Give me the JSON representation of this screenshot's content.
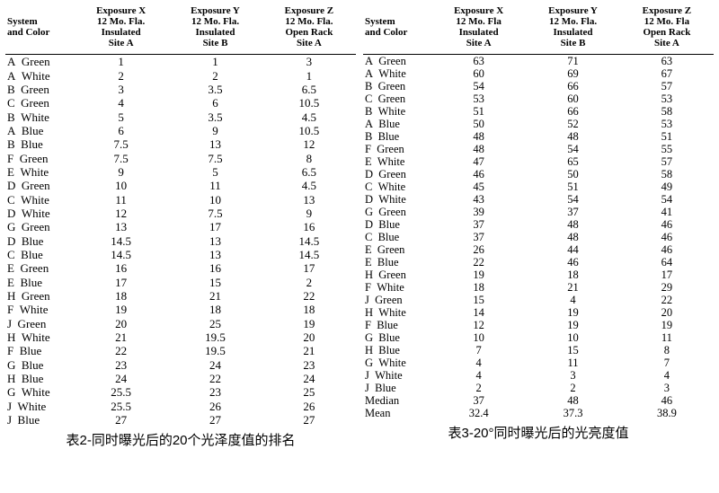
{
  "left": {
    "caption": "表2-同时曝光后的20个光泽度值的排名",
    "headers": {
      "system_and_color": "System\nand Color",
      "expX": "Exposure X\n12 Mo. Fla.\nInsulated\nSite A",
      "expY": "Exposure Y\n12 Mo. Fla.\nInsulated\nSite B",
      "expZ": "Exposure Z\n12 Mo. Fla.\nOpen Rack\nSite A"
    },
    "rows": [
      [
        "A",
        "Green",
        "1",
        "1",
        "3"
      ],
      [
        "A",
        "White",
        "2",
        "2",
        "1"
      ],
      [
        "B",
        "Green",
        "3",
        "3.5",
        "6.5"
      ],
      [
        "C",
        "Green",
        "4",
        "6",
        "10.5"
      ],
      [
        "B",
        "White",
        "5",
        "3.5",
        "4.5"
      ],
      [
        "A",
        "Blue",
        "6",
        "9",
        "10.5"
      ],
      [
        "B",
        "Blue",
        "7.5",
        "13",
        "12"
      ],
      [
        "F",
        "Green",
        "7.5",
        "7.5",
        "8"
      ],
      [
        "E",
        "White",
        "9",
        "5",
        "6.5"
      ],
      [
        "D",
        "Green",
        "10",
        "11",
        "4.5"
      ],
      [
        "C",
        "White",
        "11",
        "10",
        "13"
      ],
      [
        "D",
        "White",
        "12",
        "7.5",
        "9"
      ],
      [
        "G",
        "Green",
        "13",
        "17",
        "16"
      ],
      [
        "D",
        "Blue",
        "14.5",
        "13",
        "14.5"
      ],
      [
        "C",
        "Blue",
        "14.5",
        "13",
        "14.5"
      ],
      [
        "E",
        "Green",
        "16",
        "16",
        "17"
      ],
      [
        "E",
        "Blue",
        "17",
        "15",
        "2"
      ],
      [
        "H",
        "Green",
        "18",
        "21",
        "22"
      ],
      [
        "F",
        "White",
        "19",
        "18",
        "18"
      ],
      [
        "J",
        "Green",
        "20",
        "25",
        "19"
      ],
      [
        "H",
        "White",
        "21",
        "19.5",
        "20"
      ],
      [
        "F",
        "Blue",
        "22",
        "19.5",
        "21"
      ],
      [
        "G",
        "Blue",
        "23",
        "24",
        "23"
      ],
      [
        "H",
        "Blue",
        "24",
        "22",
        "24"
      ],
      [
        "G",
        "White",
        "25.5",
        "23",
        "25"
      ],
      [
        "J",
        "White",
        "25.5",
        "26",
        "26"
      ],
      [
        "J",
        "Blue",
        "27",
        "27",
        "27"
      ]
    ]
  },
  "right": {
    "caption": "表3-20°同时曝光后的光亮度值",
    "headers": {
      "system_and_color": "System\nand Color",
      "expX": "Exposure X\n12 Mo. Fla\nInsulated\nSite A",
      "expY": "Exposure Y\n12 Mo. Fla.\nInsulated\nSite B",
      "expZ": "Exposure Z\n12 Mo. Fla\nOpen Rack\nSite A"
    },
    "rows": [
      [
        "A",
        "Green",
        "63",
        "71",
        "63"
      ],
      [
        "A",
        "White",
        "60",
        "69",
        "67"
      ],
      [
        "B",
        "Green",
        "54",
        "66",
        "57"
      ],
      [
        "C",
        "Green",
        "53",
        "60",
        "53"
      ],
      [
        "B",
        "White",
        "51",
        "66",
        "58"
      ],
      [
        "A",
        "Blue",
        "50",
        "52",
        "53"
      ],
      [
        "B",
        "Blue",
        "48",
        "48",
        "51"
      ],
      [
        "F",
        "Green",
        "48",
        "54",
        "55"
      ],
      [
        "E",
        "White",
        "47",
        "65",
        "57"
      ],
      [
        "D",
        "Green",
        "46",
        "50",
        "58"
      ],
      [
        "C",
        "White",
        "45",
        "51",
        "49"
      ],
      [
        "D",
        "White",
        "43",
        "54",
        "54"
      ],
      [
        "G",
        "Green",
        "39",
        "37",
        "41"
      ],
      [
        "D",
        "Blue",
        "37",
        "48",
        "46"
      ],
      [
        "C",
        "Blue",
        "37",
        "48",
        "46"
      ],
      [
        "E",
        "Green",
        "26",
        "44",
        "46"
      ],
      [
        "E",
        "Blue",
        "22",
        "46",
        "64"
      ],
      [
        "H",
        "Green",
        "19",
        "18",
        "17"
      ],
      [
        "F",
        "White",
        "18",
        "21",
        "29"
      ],
      [
        "J",
        "Green",
        "15",
        "4",
        "22"
      ],
      [
        "H",
        "White",
        "14",
        "19",
        "20"
      ],
      [
        "F",
        "Blue",
        "12",
        "19",
        "19"
      ],
      [
        "G",
        "Blue",
        "10",
        "10",
        "11"
      ],
      [
        "H",
        "Blue",
        "7",
        "15",
        "8"
      ],
      [
        "G",
        "White",
        "4",
        "11",
        "7"
      ],
      [
        "J",
        "White",
        "4",
        "3",
        "4"
      ],
      [
        "J",
        "Blue",
        "2",
        "2",
        "3"
      ],
      [
        "",
        "Median",
        "37",
        "48",
        "46"
      ],
      [
        "",
        "Mean",
        "32.4",
        "37.3",
        "38.9"
      ]
    ]
  }
}
